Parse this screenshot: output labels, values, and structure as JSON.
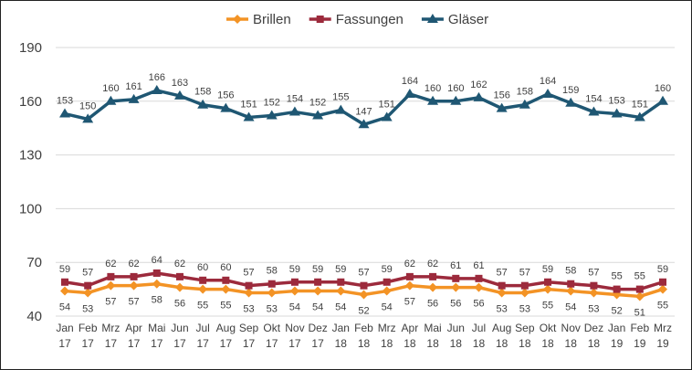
{
  "chart_data": {
    "type": "line",
    "title": "",
    "xlabel": "",
    "ylabel": "",
    "ylim": [
      40,
      190
    ],
    "yticks": [
      "40",
      "70",
      "100",
      "130",
      "160",
      "190"
    ],
    "grid": true,
    "legend_position": "top",
    "categories": [
      [
        "Jan",
        "17"
      ],
      [
        "Feb",
        "17"
      ],
      [
        "Mrz",
        "17"
      ],
      [
        "Apr",
        "17"
      ],
      [
        "Mai",
        "17"
      ],
      [
        "Jun",
        "17"
      ],
      [
        "Jul",
        "17"
      ],
      [
        "Aug",
        "17"
      ],
      [
        "Sep",
        "17"
      ],
      [
        "Okt",
        "17"
      ],
      [
        "Nov",
        "17"
      ],
      [
        "Dez",
        "17"
      ],
      [
        "Jan",
        "18"
      ],
      [
        "Feb",
        "18"
      ],
      [
        "Mrz",
        "18"
      ],
      [
        "Apr",
        "18"
      ],
      [
        "Mai",
        "18"
      ],
      [
        "Jun",
        "18"
      ],
      [
        "Jul",
        "18"
      ],
      [
        "Aug",
        "18"
      ],
      [
        "Sep",
        "18"
      ],
      [
        "Okt",
        "18"
      ],
      [
        "Nov",
        "18"
      ],
      [
        "Dez",
        "18"
      ],
      [
        "Jan",
        "19"
      ],
      [
        "Feb",
        "19"
      ],
      [
        "Mrz",
        "19"
      ]
    ],
    "series": [
      {
        "name": "Brillen",
        "color": "#F39325",
        "marker": "diamond",
        "label_pos": "below",
        "values": [
          54,
          53,
          57,
          57,
          58,
          56,
          55,
          55,
          53,
          53,
          54,
          54,
          54,
          52,
          54,
          57,
          56,
          56,
          56,
          53,
          53,
          55,
          54,
          53,
          52,
          51,
          55
        ]
      },
      {
        "name": "Fassungen",
        "color": "#9C2A3C",
        "marker": "square",
        "label_pos": "above",
        "values": [
          59,
          57,
          62,
          62,
          64,
          62,
          60,
          60,
          57,
          58,
          59,
          59,
          59,
          57,
          59,
          62,
          62,
          61,
          61,
          57,
          57,
          59,
          58,
          57,
          55,
          55,
          59
        ]
      },
      {
        "name": "Gläser",
        "color": "#1F5773",
        "marker": "triangle",
        "label_pos": "above",
        "values": [
          153,
          150,
          160,
          161,
          166,
          163,
          158,
          156,
          151,
          152,
          154,
          152,
          155,
          147,
          151,
          164,
          160,
          160,
          162,
          156,
          158,
          164,
          159,
          154,
          153,
          151,
          160
        ]
      }
    ]
  }
}
